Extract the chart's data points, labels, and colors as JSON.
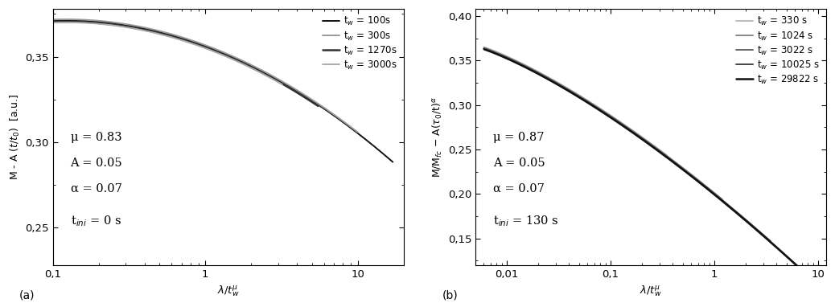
{
  "panel_a": {
    "xlabel": "$\\lambda / t_w^{\\mu}$",
    "xlim": [
      0.1,
      20
    ],
    "ylim": [
      0.228,
      0.378
    ],
    "yticks": [
      0.25,
      0.3,
      0.35
    ],
    "ytick_labels": [
      "0,25",
      "0,30",
      "0,35"
    ],
    "mu": 0.83,
    "A": 0.05,
    "alpha": 0.07,
    "series": [
      {
        "tw": 100,
        "color": "#111111",
        "lw": 1.4,
        "label": "t$_w$ = 100s",
        "xmax": 17.0
      },
      {
        "tw": 300,
        "color": "#999999",
        "lw": 1.4,
        "label": "t$_w$ = 300s",
        "xmax": 10.0
      },
      {
        "tw": 1270,
        "color": "#333333",
        "lw": 1.8,
        "label": "t$_w$ = 1270s",
        "xmax": 5.5
      },
      {
        "tw": 3000,
        "color": "#aaaaaa",
        "lw": 1.4,
        "label": "t$_w$ = 3000s",
        "xmax": 3.2
      }
    ]
  },
  "panel_b": {
    "xlabel": "$\\lambda / t_w^{\\mu}$",
    "xlim": [
      0.005,
      12
    ],
    "ylim": [
      0.12,
      0.408
    ],
    "yticks": [
      0.15,
      0.2,
      0.25,
      0.3,
      0.35,
      0.4
    ],
    "ytick_labels": [
      "0,15",
      "0,20",
      "0,25",
      "0,30",
      "0,35",
      "0,40"
    ],
    "mu": 0.87,
    "A": 0.05,
    "alpha": 0.07,
    "series": [
      {
        "tw": 330,
        "color": "#bbbbbb",
        "lw": 1.4,
        "label": "t$_w$ = 330 s",
        "xmin": 0.005,
        "xmax": 0.35
      },
      {
        "tw": 1024,
        "color": "#888888",
        "lw": 1.4,
        "label": "t$_w$ = 1024 s",
        "xmin": 0.005,
        "xmax": 1.2
      },
      {
        "tw": 3022,
        "color": "#666666",
        "lw": 1.4,
        "label": "t$_w$ = 3022 s",
        "xmin": 0.005,
        "xmax": 3.5
      },
      {
        "tw": 10025,
        "color": "#444444",
        "lw": 1.4,
        "label": "t$_w$ = 10025 s",
        "xmin": 0.005,
        "xmax": 7.5
      },
      {
        "tw": 29822,
        "color": "#111111",
        "lw": 1.8,
        "label": "t$_w$ = 29822 s",
        "xmin": 0.005,
        "xmax": 11.0
      }
    ]
  },
  "panel_label_a": "(a)",
  "panel_label_b": "(b)",
  "bg_color": "#ffffff",
  "font_size": 9.5,
  "legend_fontsize": 8.5,
  "annot_fontsize": 10.5
}
